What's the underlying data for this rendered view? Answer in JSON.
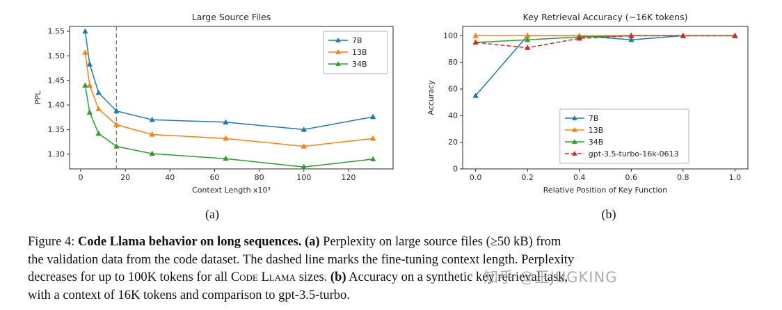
{
  "figure": {
    "subplot_labels": {
      "a": "(a)",
      "b": "(b)"
    },
    "watermark": "知乎 @王JUGKING",
    "caption": {
      "lines": [
        [
          {
            "t": "Figure 4: ",
            "s": "n"
          },
          {
            "t": "Code Llama behavior on long sequences. (a)",
            "s": "b"
          },
          {
            "t": " Perplexity on large source files (≥50 kB) from",
            "s": "n"
          }
        ],
        [
          {
            "t": "the validation data from the code dataset. The dashed line marks the fine-tuning context length. Perplexity",
            "s": "n"
          }
        ],
        [
          {
            "t": "decreases for up to 100K tokens for all ",
            "s": "n"
          },
          {
            "t": "Code Llama",
            "s": "sc"
          },
          {
            "t": " sizes. ",
            "s": "n"
          },
          {
            "t": "(b)",
            "s": "b"
          },
          {
            "t": " Accuracy on a synthetic key retrieval task,",
            "s": "n"
          }
        ],
        [
          {
            "t": "with a context of 16K tokens and comparison to gpt-3.5-turbo.",
            "s": "n"
          }
        ]
      ]
    }
  },
  "colors": {
    "blue": "#1f77b4",
    "orange": "#ff7f0e",
    "green": "#2ca02c",
    "red": "#d62728",
    "axis": "#262626",
    "vline": "#777777",
    "legend_border": "#b0b0b0"
  },
  "chart_data": [
    {
      "type": "line",
      "title": "Large Source Files",
      "xlabel": "Context Length x10³",
      "ylabel": "PPL",
      "xlim": [
        -5,
        140
      ],
      "ylim": [
        1.27,
        1.56
      ],
      "grid": false,
      "xticks": [
        0,
        20,
        40,
        60,
        80,
        100,
        120
      ],
      "xtick_labels": [
        "0",
        "20",
        "40",
        "60",
        "80",
        "100",
        "120"
      ],
      "yticks": [
        1.3,
        1.35,
        1.4,
        1.45,
        1.5,
        1.55
      ],
      "ytick_labels": [
        "1.30",
        "1.35",
        "1.40",
        "1.45",
        "1.50",
        "1.55"
      ],
      "vline": {
        "x": 16,
        "style": "dashed",
        "color": "#777777",
        "meaning": "fine-tuning context length"
      },
      "legend_position": "upper right",
      "series": [
        {
          "name": "7B",
          "color": "#1f77b4",
          "dash": false,
          "marker": "triangle",
          "x": [
            2,
            4,
            8,
            16,
            32,
            65,
            100,
            131
          ],
          "y": [
            1.55,
            1.483,
            1.425,
            1.388,
            1.37,
            1.365,
            1.35,
            1.376
          ]
        },
        {
          "name": "13B",
          "color": "#ff7f0e",
          "dash": false,
          "marker": "triangle",
          "x": [
            2,
            4,
            8,
            16,
            32,
            65,
            100,
            131
          ],
          "y": [
            1.507,
            1.44,
            1.392,
            1.36,
            1.34,
            1.332,
            1.316,
            1.332
          ]
        },
        {
          "name": "34B",
          "color": "#2ca02c",
          "dash": false,
          "marker": "triangle",
          "x": [
            2,
            4,
            8,
            16,
            32,
            65,
            100,
            131
          ],
          "y": [
            1.44,
            1.385,
            1.342,
            1.316,
            1.301,
            1.291,
            1.274,
            1.29
          ]
        }
      ]
    },
    {
      "type": "line",
      "title": "Key Retrieval Accuracy (~16K tokens)",
      "xlabel": "Relative Position of Key Function",
      "ylabel": "Accuracy",
      "xlim": [
        -0.05,
        1.05
      ],
      "ylim": [
        0,
        107
      ],
      "grid": false,
      "xticks": [
        0.0,
        0.2,
        0.4,
        0.6,
        0.8,
        1.0
      ],
      "xtick_labels": [
        "0.0",
        "0.2",
        "0.4",
        "0.6",
        "0.8",
        "1.0"
      ],
      "yticks": [
        0,
        20,
        40,
        60,
        80,
        100
      ],
      "ytick_labels": [
        "0",
        "20",
        "40",
        "60",
        "80",
        "100"
      ],
      "legend_position": "lower right",
      "series": [
        {
          "name": "7B",
          "color": "#1f77b4",
          "dash": false,
          "marker": "triangle",
          "x": [
            0.0,
            0.2,
            0.4,
            0.6,
            0.8,
            1.0
          ],
          "y": [
            55,
            100,
            100,
            97,
            100,
            100
          ]
        },
        {
          "name": "13B",
          "color": "#ff7f0e",
          "dash": false,
          "marker": "triangle",
          "x": [
            0.0,
            0.2,
            0.4,
            0.6,
            0.8,
            1.0
          ],
          "y": [
            100,
            100,
            100,
            100,
            100,
            100
          ]
        },
        {
          "name": "34B",
          "color": "#2ca02c",
          "dash": false,
          "marker": "triangle",
          "x": [
            0.0,
            0.2,
            0.4,
            0.6,
            0.8,
            1.0
          ],
          "y": [
            95,
            97,
            99,
            100,
            100,
            100
          ]
        },
        {
          "name": "gpt-3.5-turbo-16k-0613",
          "color": "#d62728",
          "dash": true,
          "marker": "triangle",
          "x": [
            0.0,
            0.2,
            0.4,
            0.6,
            0.8,
            1.0
          ],
          "y": [
            95,
            91,
            98,
            100,
            100,
            100
          ]
        }
      ]
    }
  ]
}
